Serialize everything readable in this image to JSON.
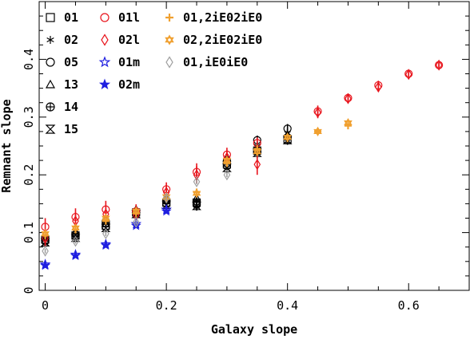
{
  "chart_data": {
    "type": "scatter",
    "title": "",
    "xlabel": "Galaxy slope",
    "ylabel": "Remnant slope",
    "xlim": [
      -0.01,
      0.7
    ],
    "ylim": [
      0,
      0.5
    ],
    "xticks": [
      0,
      0.2,
      0.4,
      0.6
    ],
    "xtick_labels": [
      "0",
      "0.2",
      "0.4",
      "0.6"
    ],
    "yticks": [
      0,
      0.1,
      0.2,
      0.3,
      0.4
    ],
    "ytick_labels": [
      "0",
      "0.1",
      "0.2",
      "0.3",
      "0.4"
    ],
    "grid": false,
    "legend_position": "top-left",
    "series": [
      {
        "name": "01",
        "marker": "square",
        "color": "#000000",
        "x": [
          0,
          0.05,
          0.1,
          0.15,
          0.2,
          0.25,
          0.3,
          0.35,
          0.4
        ],
        "y": [
          0.088,
          0.095,
          0.112,
          0.135,
          0.152,
          0.152,
          0.218,
          0.242,
          0.262
        ],
        "err": [
          0.008,
          0.008,
          0.008,
          0.008,
          0.008,
          0.008,
          0.008,
          0.008,
          0.008
        ]
      },
      {
        "name": "02",
        "marker": "asterisk",
        "color": "#000000",
        "x": [
          0,
          0.05,
          0.1,
          0.15,
          0.2,
          0.25,
          0.3,
          0.35,
          0.4
        ],
        "y": [
          0.09,
          0.092,
          0.118,
          0.137,
          0.153,
          0.155,
          0.222,
          0.25,
          0.272
        ],
        "err": [
          0.008,
          0.008,
          0.008,
          0.008,
          0.008,
          0.008,
          0.008,
          0.008,
          0.008
        ]
      },
      {
        "name": "05",
        "marker": "circle",
        "color": "#000000",
        "x": [
          0,
          0.05,
          0.1,
          0.15,
          0.2,
          0.25,
          0.3,
          0.35,
          0.4
        ],
        "y": [
          0.087,
          0.097,
          0.12,
          0.133,
          0.155,
          0.15,
          0.225,
          0.26,
          0.28
        ],
        "err": [
          0.008,
          0.008,
          0.008,
          0.008,
          0.008,
          0.008,
          0.008,
          0.008,
          0.008
        ]
      },
      {
        "name": "13",
        "marker": "triangle",
        "color": "#000000",
        "x": [
          0,
          0.05,
          0.1,
          0.15,
          0.2,
          0.25,
          0.3,
          0.35,
          0.4
        ],
        "y": [
          0.092,
          0.1,
          0.115,
          0.14,
          0.158,
          0.16,
          0.228,
          0.245,
          0.27
        ],
        "err": [
          0.008,
          0.008,
          0.008,
          0.008,
          0.008,
          0.008,
          0.008,
          0.008,
          0.008
        ]
      },
      {
        "name": "14",
        "marker": "circleplus",
        "color": "#000000",
        "x": [
          0,
          0.05,
          0.1,
          0.15,
          0.2,
          0.25,
          0.3,
          0.35,
          0.4
        ],
        "y": [
          0.085,
          0.093,
          0.11,
          0.136,
          0.15,
          0.148,
          0.215,
          0.24,
          0.265
        ],
        "err": [
          0.008,
          0.008,
          0.008,
          0.008,
          0.008,
          0.008,
          0.008,
          0.008,
          0.008
        ]
      },
      {
        "name": "15",
        "marker": "hourglass",
        "color": "#000000",
        "x": [
          0,
          0.05,
          0.1,
          0.15,
          0.2,
          0.25,
          0.3,
          0.35,
          0.4
        ],
        "y": [
          0.083,
          0.091,
          0.108,
          0.132,
          0.148,
          0.146,
          0.212,
          0.238,
          0.26
        ],
        "err": [
          0.008,
          0.008,
          0.008,
          0.008,
          0.008,
          0.008,
          0.008,
          0.008,
          0.008
        ]
      },
      {
        "name": "01l",
        "marker": "circle",
        "color": "#e8141c",
        "x": [
          0,
          0.05,
          0.1,
          0.15,
          0.2,
          0.25,
          0.3,
          0.35,
          0.45,
          0.5,
          0.55,
          0.6,
          0.65
        ],
        "y": [
          0.11,
          0.127,
          0.14,
          0.137,
          0.175,
          0.205,
          0.235,
          0.255,
          0.31,
          0.333,
          0.355,
          0.375,
          0.39
        ],
        "err": [
          0.015,
          0.015,
          0.015,
          0.012,
          0.012,
          0.015,
          0.012,
          0.01,
          0.01,
          0.008,
          0.008,
          0.006,
          0.005
        ]
      },
      {
        "name": "02l",
        "marker": "diamond",
        "color": "#e8141c",
        "x": [
          0,
          0.05,
          0.1,
          0.15,
          0.2,
          0.25,
          0.3,
          0.35,
          0.45,
          0.5,
          0.55,
          0.6,
          0.65
        ],
        "y": [
          0.09,
          0.12,
          0.132,
          0.13,
          0.17,
          0.2,
          0.23,
          0.218,
          0.308,
          0.332,
          0.352,
          0.374,
          0.39
        ],
        "err": [
          0.015,
          0.015,
          0.015,
          0.012,
          0.012,
          0.015,
          0.012,
          0.018,
          0.01,
          0.008,
          0.008,
          0.006,
          0.005
        ]
      },
      {
        "name": "01m",
        "marker": "star-open",
        "color": "#1f1fe0",
        "x": [
          0,
          0.05,
          0.1,
          0.15,
          0.2
        ],
        "y": [
          0.045,
          0.062,
          0.08,
          0.115,
          0.14
        ],
        "err": [
          0.004,
          0.004,
          0.004,
          0.004,
          0.004
        ]
      },
      {
        "name": "02m",
        "marker": "star-filled",
        "color": "#1f1fe0",
        "x": [
          0,
          0.05,
          0.1,
          0.15,
          0.2
        ],
        "y": [
          0.043,
          0.06,
          0.078,
          0.112,
          0.137
        ],
        "err": [
          0.004,
          0.004,
          0.004,
          0.004,
          0.004
        ]
      },
      {
        "name": "01,2iE02iE0",
        "marker": "cross",
        "color": "#f0a030",
        "x": [
          0,
          0.05,
          0.1,
          0.15,
          0.2,
          0.25,
          0.3,
          0.35,
          0.4,
          0.45,
          0.5
        ],
        "y": [
          0.095,
          0.105,
          0.12,
          0.133,
          0.158,
          0.17,
          0.22,
          0.245,
          0.263,
          0.275,
          0.285
        ],
        "err": [
          0.006,
          0.006,
          0.006,
          0.006,
          0.006,
          0.006,
          0.006,
          0.006,
          0.006,
          0.006,
          0.006
        ]
      },
      {
        "name": "02,2iE02iE0",
        "marker": "star-of-david",
        "color": "#f0a030",
        "x": [
          0,
          0.05,
          0.1,
          0.15,
          0.2,
          0.25,
          0.3,
          0.35,
          0.4,
          0.45,
          0.5
        ],
        "y": [
          0.098,
          0.108,
          0.125,
          0.137,
          0.162,
          0.168,
          0.225,
          0.24,
          0.265,
          0.275,
          0.29
        ],
        "err": [
          0.006,
          0.006,
          0.006,
          0.006,
          0.006,
          0.006,
          0.006,
          0.006,
          0.006,
          0.006,
          0.006
        ]
      },
      {
        "name": "01,iE0iE0",
        "marker": "diamond",
        "color": "#a0a0a0",
        "x": [
          0,
          0.05,
          0.1,
          0.15,
          0.2,
          0.25,
          0.3
        ],
        "y": [
          0.068,
          0.085,
          0.098,
          0.118,
          0.16,
          0.188,
          0.2
        ],
        "err": [
          0.004,
          0.004,
          0.004,
          0.004,
          0.004,
          0.004,
          0.004
        ]
      }
    ]
  }
}
